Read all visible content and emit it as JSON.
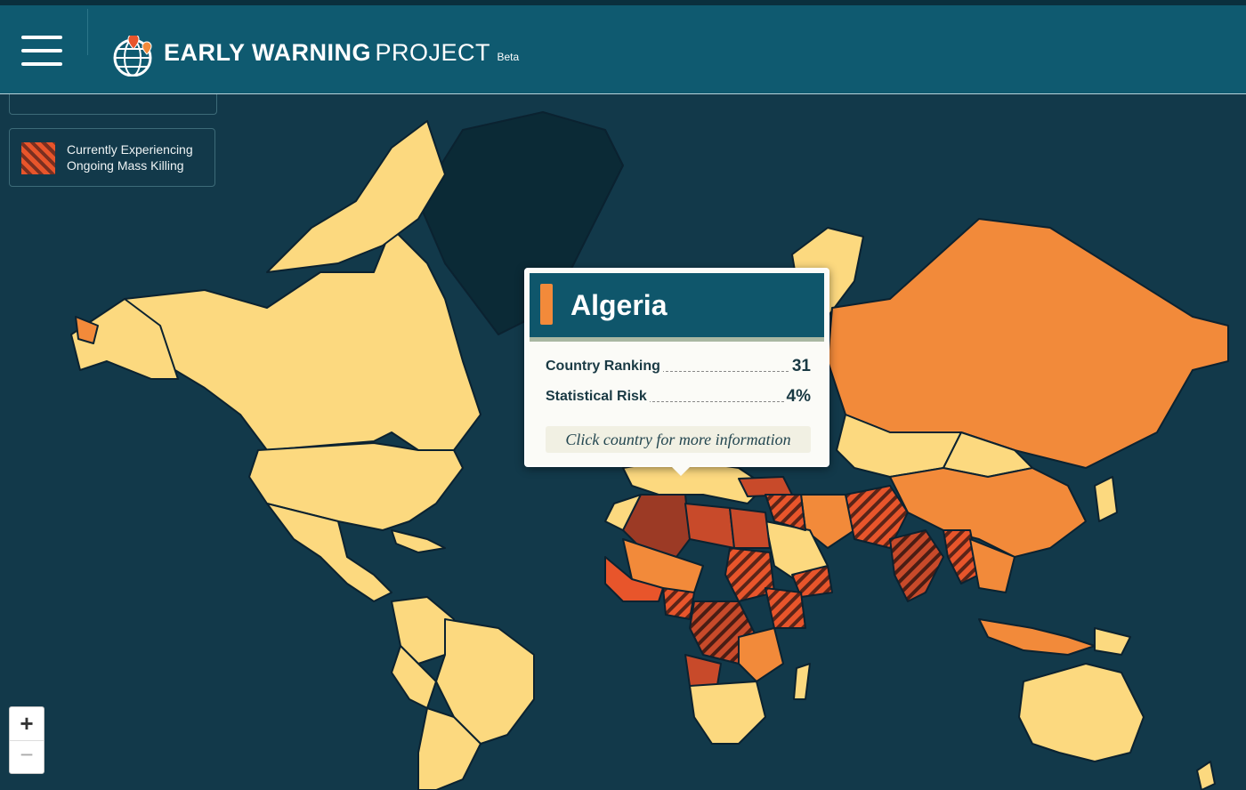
{
  "header": {
    "brand_bold": "EARLY WARNING",
    "brand_light": "PROJECT",
    "brand_badge": "Beta"
  },
  "legend": {
    "ongoing_line1": "Currently Experiencing",
    "ongoing_line2": "Ongoing Mass Killing"
  },
  "tooltip": {
    "country": "Algeria",
    "ranking_label": "Country Ranking",
    "ranking_value": "31",
    "risk_label": "Statistical Risk",
    "risk_value": "4%",
    "hint": "Click country for more information"
  },
  "zoom": {
    "in_label": "+",
    "out_label": "−"
  },
  "colors": {
    "ocean": "#12394a",
    "low_risk": "#fcd97f",
    "mid_risk": "#f28a3a",
    "high_risk": "#c84a2a",
    "very_high_risk": "#9c3a25",
    "greenland": "#0b2a36",
    "header": "#0f5a70"
  },
  "icons": {
    "menu": "hamburger-icon",
    "logo": "globe-pin-icon"
  }
}
